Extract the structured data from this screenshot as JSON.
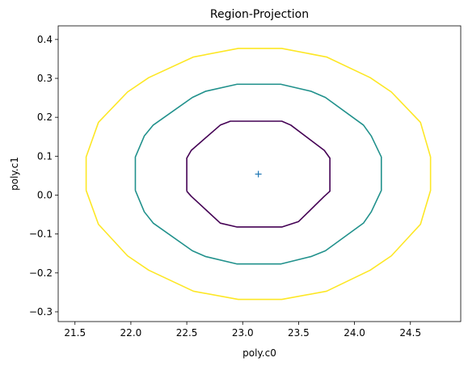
{
  "chart_data": {
    "type": "line",
    "title": "Region-Projection",
    "xlabel": "poly.c0",
    "ylabel": "poly.c1",
    "xlim": [
      21.35,
      24.95
    ],
    "ylim": [
      -0.325,
      0.435
    ],
    "xticks": [
      21.5,
      22.0,
      22.5,
      23.0,
      23.5,
      24.0,
      24.5
    ],
    "xtick_labels": [
      "21.5",
      "22.0",
      "22.5",
      "23.0",
      "23.5",
      "24.0",
      "24.5"
    ],
    "yticks": [
      -0.3,
      -0.2,
      -0.1,
      0.0,
      0.1,
      0.2,
      0.3,
      0.4
    ],
    "ytick_labels": [
      "−0.3",
      "−0.2",
      "−0.1",
      "0.0",
      "0.1",
      "0.2",
      "0.3",
      "0.4"
    ],
    "grid": false,
    "series": [
      {
        "color": "#440154",
        "points": [
          [
            22.5,
            0.01
          ],
          [
            22.5,
            0.095
          ],
          [
            22.54,
            0.115
          ],
          [
            22.8,
            0.18
          ],
          [
            22.89,
            0.19
          ],
          [
            23.35,
            0.19
          ],
          [
            23.43,
            0.18
          ],
          [
            23.73,
            0.115
          ],
          [
            23.78,
            0.095
          ],
          [
            23.78,
            0.01
          ],
          [
            23.73,
            -0.003
          ],
          [
            23.5,
            -0.068
          ],
          [
            23.35,
            -0.082
          ],
          [
            22.95,
            -0.082
          ],
          [
            22.8,
            -0.072
          ],
          [
            22.54,
            -0.003
          ],
          [
            22.5,
            0.01
          ]
        ]
      },
      {
        "color": "#21918c",
        "points": [
          [
            22.04,
            0.012
          ],
          [
            22.04,
            0.098
          ],
          [
            22.12,
            0.152
          ],
          [
            22.2,
            0.18
          ],
          [
            22.55,
            0.251
          ],
          [
            22.67,
            0.267
          ],
          [
            22.95,
            0.285
          ],
          [
            23.34,
            0.285
          ],
          [
            23.61,
            0.267
          ],
          [
            23.74,
            0.251
          ],
          [
            24.08,
            0.18
          ],
          [
            24.15,
            0.152
          ],
          [
            24.24,
            0.098
          ],
          [
            24.24,
            0.012
          ],
          [
            24.15,
            -0.043
          ],
          [
            24.08,
            -0.072
          ],
          [
            23.74,
            -0.143
          ],
          [
            23.61,
            -0.158
          ],
          [
            23.34,
            -0.177
          ],
          [
            22.95,
            -0.177
          ],
          [
            22.67,
            -0.158
          ],
          [
            22.55,
            -0.143
          ],
          [
            22.2,
            -0.072
          ],
          [
            22.12,
            -0.043
          ],
          [
            22.04,
            0.012
          ]
        ]
      },
      {
        "color": "#fde725",
        "points": [
          [
            21.6,
            0.012
          ],
          [
            21.6,
            0.098
          ],
          [
            21.71,
            0.187
          ],
          [
            21.97,
            0.265
          ],
          [
            22.16,
            0.302
          ],
          [
            22.56,
            0.355
          ],
          [
            22.96,
            0.377
          ],
          [
            23.35,
            0.377
          ],
          [
            23.75,
            0.355
          ],
          [
            24.14,
            0.302
          ],
          [
            24.33,
            0.265
          ],
          [
            24.59,
            0.187
          ],
          [
            24.68,
            0.098
          ],
          [
            24.68,
            0.012
          ],
          [
            24.59,
            -0.075
          ],
          [
            24.33,
            -0.156
          ],
          [
            24.14,
            -0.193
          ],
          [
            23.75,
            -0.247
          ],
          [
            23.35,
            -0.268
          ],
          [
            22.96,
            -0.268
          ],
          [
            22.56,
            -0.247
          ],
          [
            22.16,
            -0.193
          ],
          [
            21.97,
            -0.156
          ],
          [
            21.71,
            -0.075
          ],
          [
            21.6,
            0.012
          ]
        ]
      }
    ],
    "marker": {
      "x": 23.14,
      "y": 0.054,
      "symbol": "+",
      "color": "#1f77b4"
    }
  }
}
